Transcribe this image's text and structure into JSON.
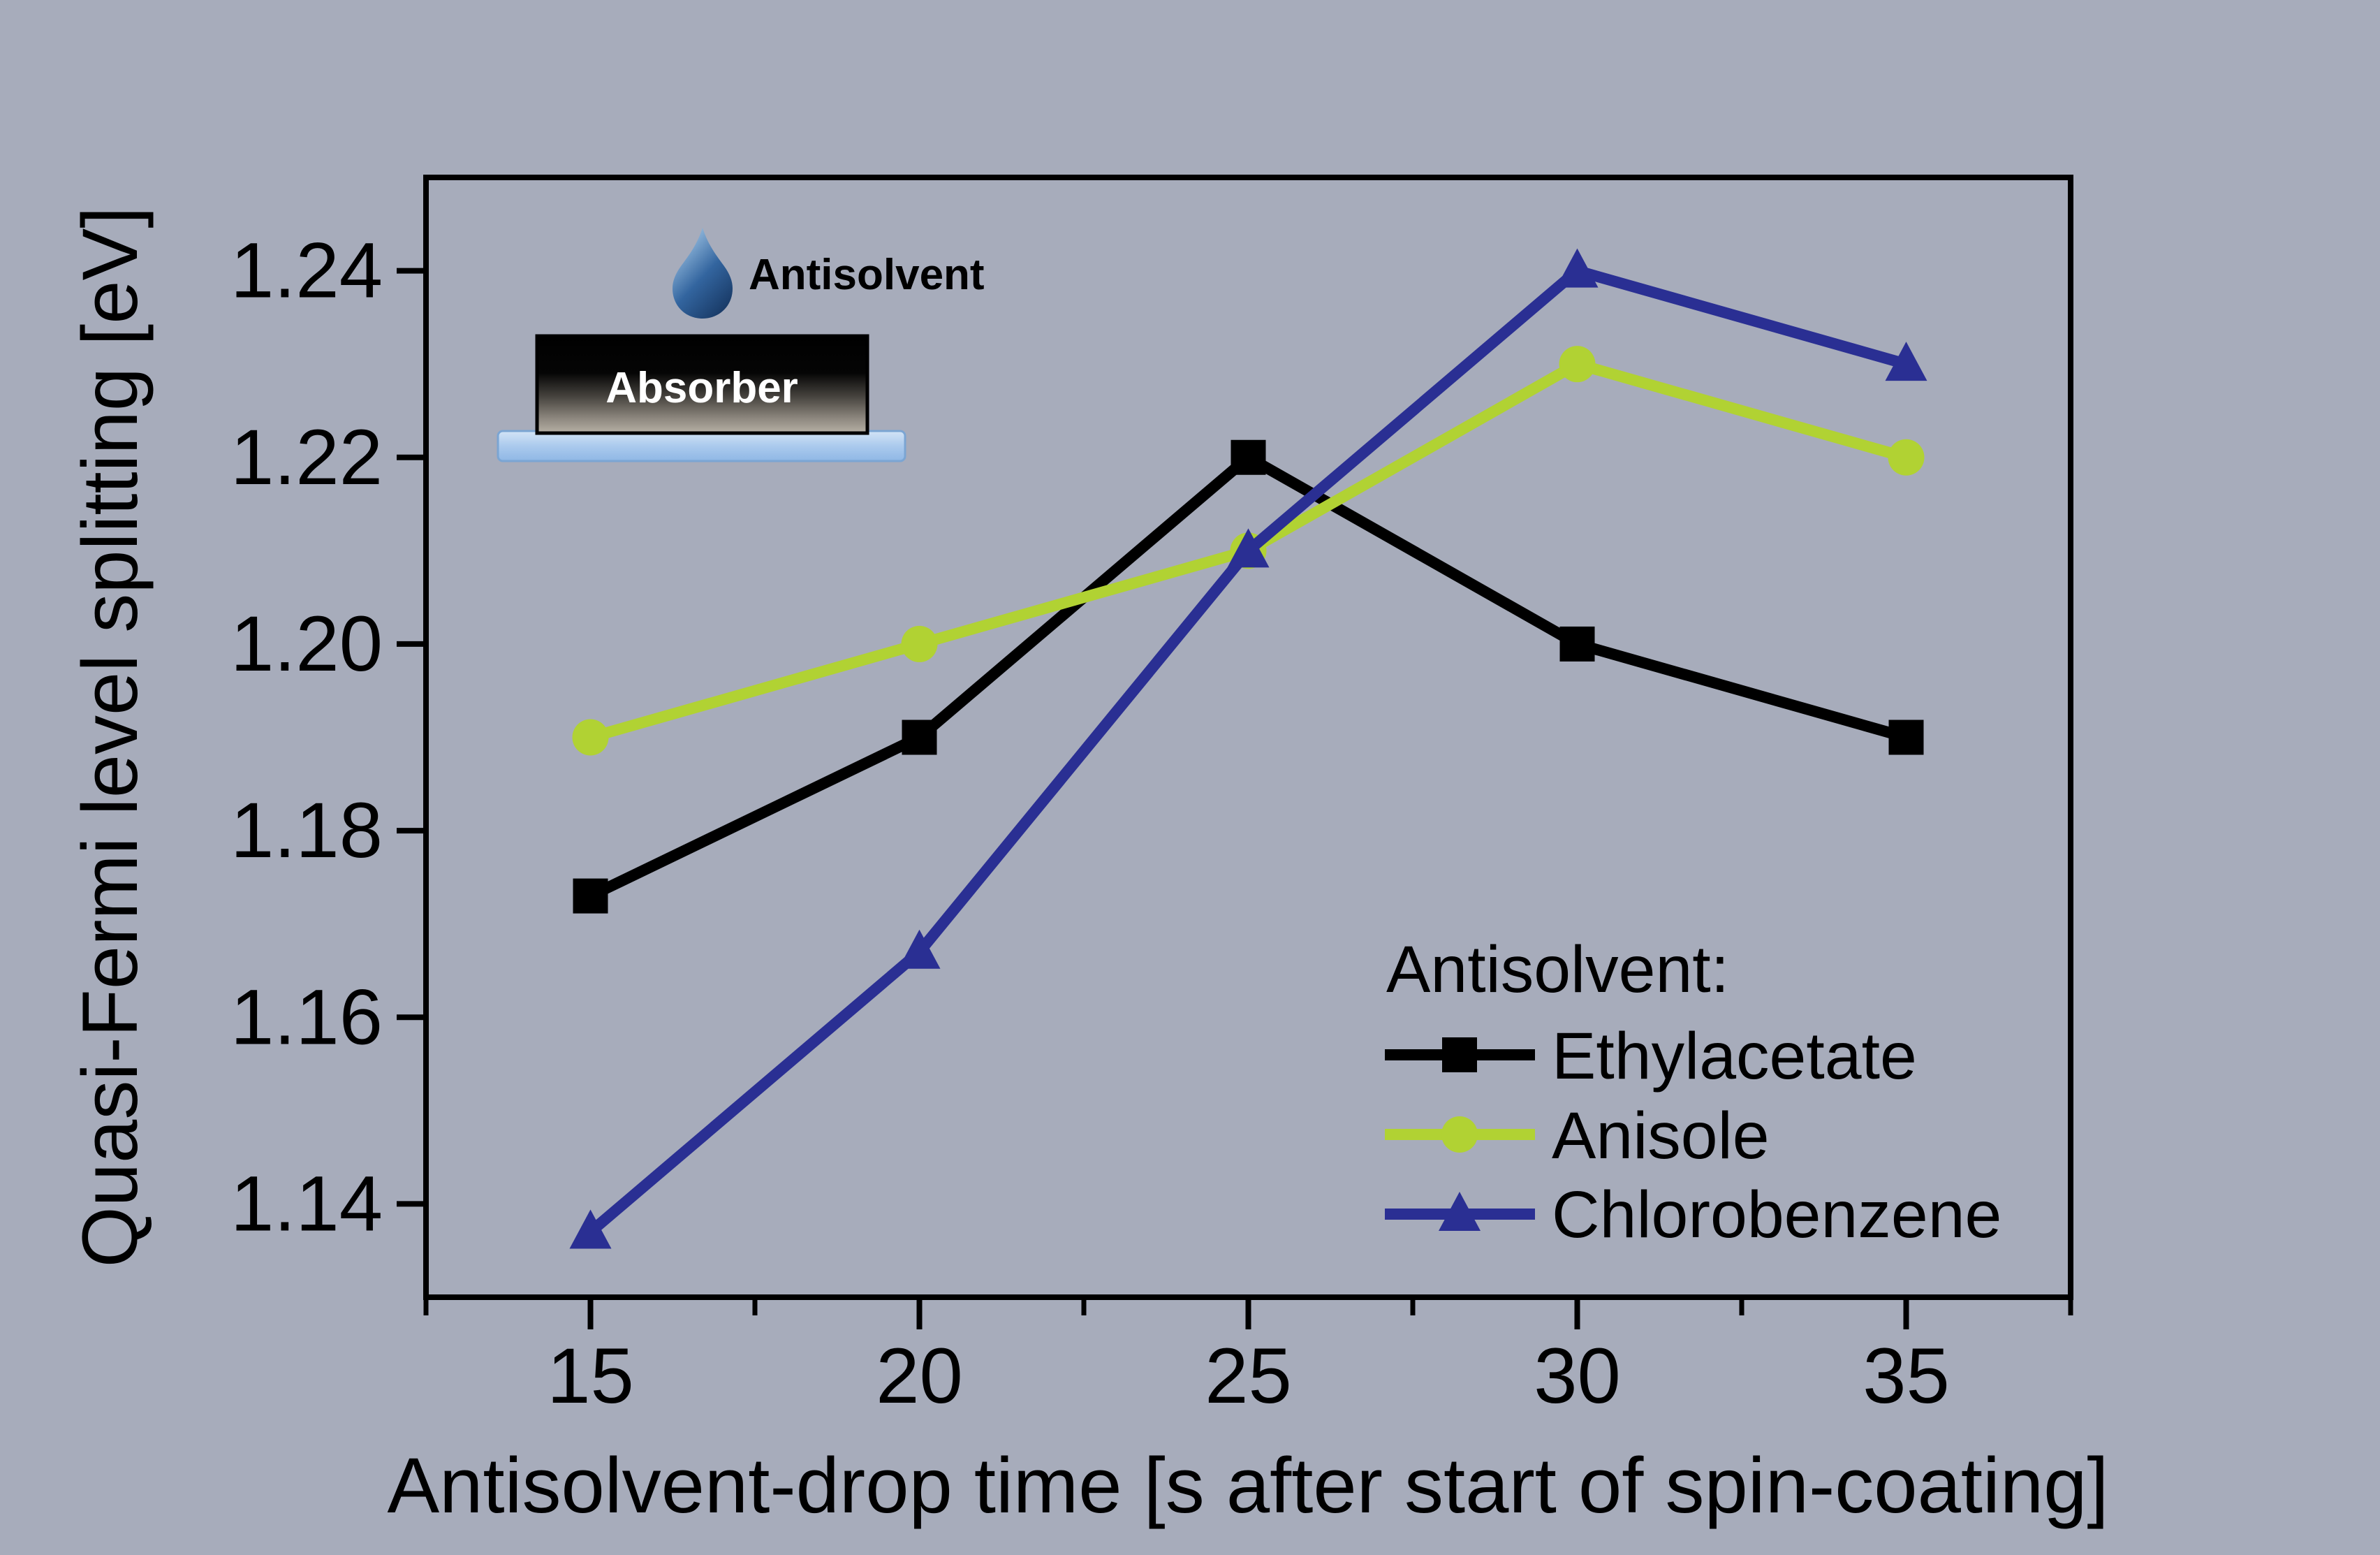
{
  "figure": {
    "background_color": "#a7acbb",
    "inset": {
      "droplet_label": "Antisolvent",
      "absorber_label": "Absorber"
    }
  },
  "chart_data": {
    "type": "line",
    "title": "",
    "xlabel": "Antisolvent-drop time [s after start of spin-coating]",
    "ylabel": "Quasi-Fermi level splitting [eV]",
    "x": [
      15,
      20,
      25,
      30,
      35
    ],
    "xlim": [
      12.5,
      37.5
    ],
    "ylim": [
      1.13,
      1.25
    ],
    "x_ticks": [
      15,
      20,
      25,
      30,
      35
    ],
    "x_minor_ticks": [
      12.5,
      17.5,
      22.5,
      27.5,
      32.5,
      37.5
    ],
    "y_ticks": [
      1.14,
      1.16,
      1.18,
      1.2,
      1.22,
      1.24
    ],
    "grid": false,
    "legend_title": "Antisolvent:",
    "legend_position": "inside lower-right",
    "series": [
      {
        "name": "Ethylacetate",
        "color": "#000000",
        "marker": "square",
        "values": [
          1.173,
          1.19,
          1.22,
          1.2,
          1.19
        ]
      },
      {
        "name": "Anisole",
        "color": "#b1d233",
        "marker": "circle",
        "values": [
          1.19,
          1.2,
          1.21,
          1.23,
          1.22
        ]
      },
      {
        "name": "Chlorobenzene",
        "color": "#2a2f93",
        "marker": "triangle",
        "values": [
          1.137,
          1.167,
          1.21,
          1.24,
          1.23
        ]
      }
    ]
  }
}
